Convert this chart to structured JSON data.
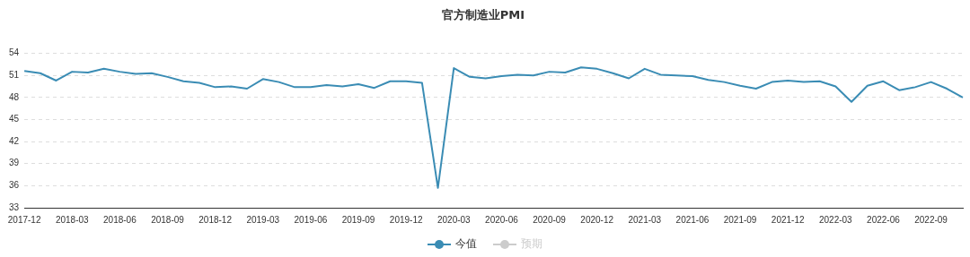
{
  "chart_data": {
    "type": "line",
    "title": "官方制造业PMI",
    "categories": [
      "2017-12",
      null,
      null,
      "2018-03",
      null,
      null,
      "2018-06",
      null,
      null,
      "2018-09",
      null,
      null,
      "2018-12",
      null,
      null,
      "2019-03",
      null,
      null,
      "2019-06",
      null,
      null,
      "2019-09",
      null,
      null,
      "2019-12",
      null,
      null,
      "2020-03",
      null,
      null,
      "2020-06",
      null,
      null,
      "2020-09",
      null,
      null,
      "2020-12",
      null,
      null,
      "2021-03",
      null,
      null,
      "2021-06",
      null,
      null,
      "2021-09",
      null,
      null,
      "2021-12",
      null,
      null,
      "2022-03",
      null,
      null,
      "2022-06",
      null,
      null,
      "2022-09",
      null,
      null
    ],
    "series": [
      {
        "name": "今值",
        "color": "#3a8cb4",
        "values": [
          51.6,
          51.3,
          50.3,
          51.5,
          51.4,
          51.9,
          51.5,
          51.2,
          51.3,
          50.8,
          50.2,
          50.0,
          49.4,
          49.5,
          49.2,
          50.5,
          50.1,
          49.4,
          49.4,
          49.7,
          49.5,
          49.8,
          49.3,
          50.2,
          50.2,
          50.0,
          35.7,
          52.0,
          50.8,
          50.6,
          50.9,
          51.1,
          51.0,
          51.5,
          51.4,
          52.1,
          51.9,
          51.3,
          50.6,
          51.9,
          51.1,
          51.0,
          50.9,
          50.4,
          50.1,
          49.6,
          49.2,
          50.1,
          50.3,
          50.1,
          50.2,
          49.5,
          47.4,
          49.6,
          50.2,
          49.0,
          49.4,
          50.1,
          49.2,
          48.0
        ]
      },
      {
        "name": "预期",
        "color": "#cccccc",
        "values": [
          null,
          null,
          null,
          null,
          null,
          null,
          null,
          null,
          null,
          null,
          null,
          null,
          null,
          null,
          null,
          null,
          null,
          null,
          null,
          null,
          null,
          null,
          null,
          null,
          null,
          null,
          null,
          null,
          null,
          null,
          null,
          null,
          null,
          null,
          null,
          null,
          null,
          null,
          null,
          null,
          null,
          null,
          null,
          null,
          null,
          null,
          null,
          null,
          null,
          null,
          null,
          null,
          null,
          null,
          null,
          null,
          null,
          null,
          null,
          null
        ]
      }
    ],
    "ylim": [
      33,
      54
    ],
    "yticks": [
      33,
      36,
      39,
      42,
      45,
      48,
      51,
      54
    ],
    "grid": "y",
    "legend": "bottom",
    "marker": "none",
    "line_style": "solid"
  }
}
